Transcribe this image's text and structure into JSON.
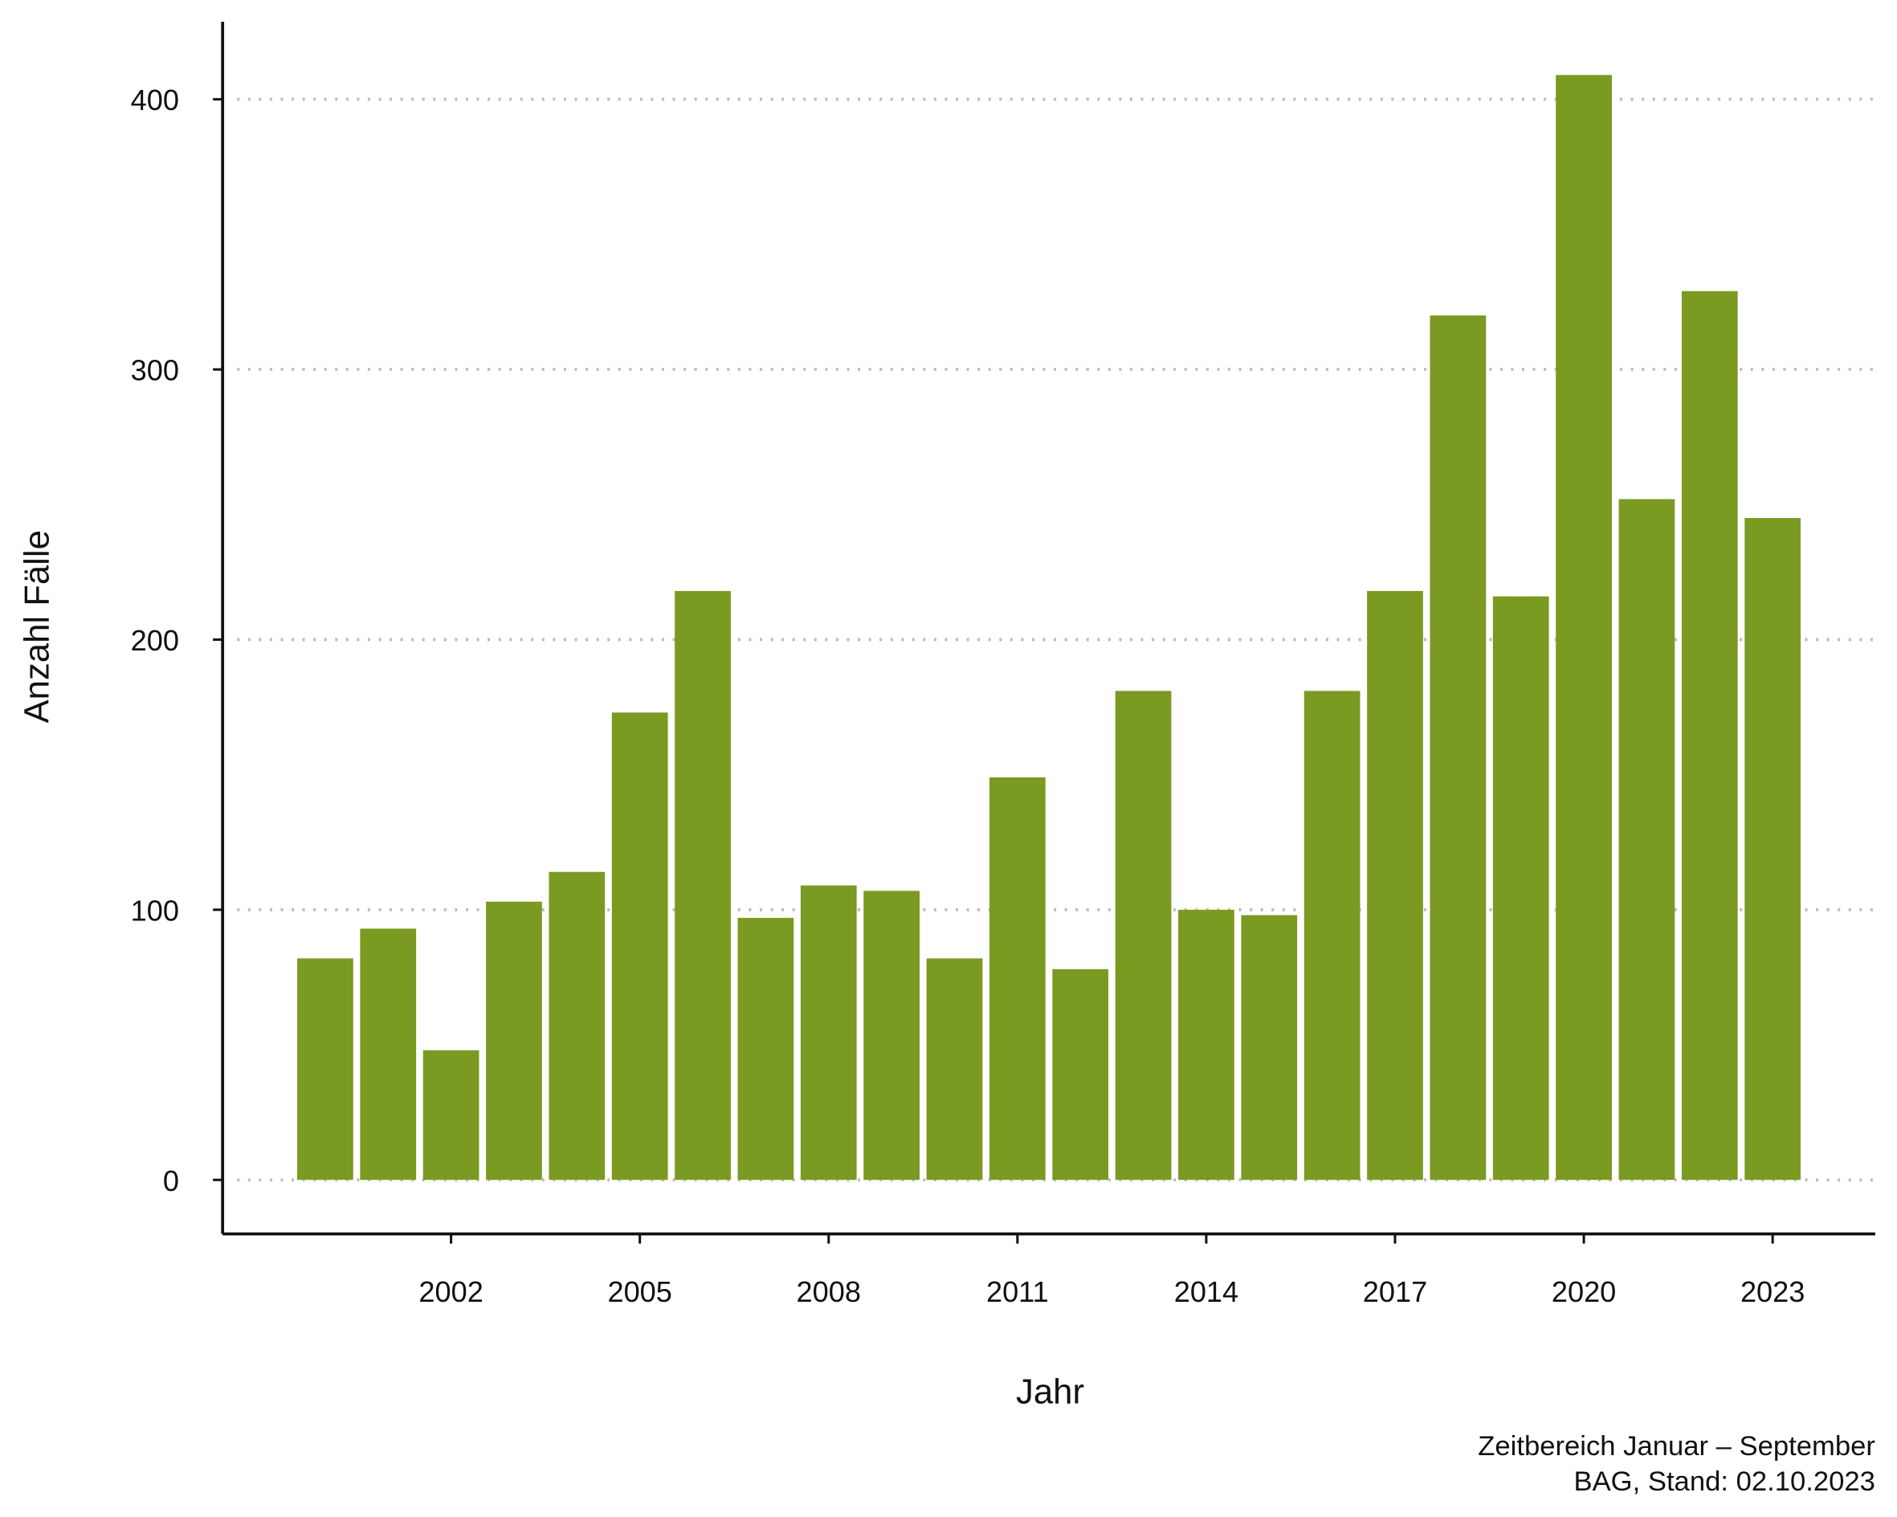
{
  "chart_data": {
    "type": "bar",
    "x": [
      2000,
      2001,
      2002,
      2003,
      2004,
      2005,
      2006,
      2007,
      2008,
      2009,
      2010,
      2011,
      2012,
      2013,
      2014,
      2015,
      2016,
      2017,
      2018,
      2019,
      2020,
      2021,
      2022,
      2023
    ],
    "values": [
      82,
      93,
      48,
      103,
      114,
      173,
      218,
      97,
      109,
      107,
      82,
      149,
      78,
      181,
      100,
      98,
      181,
      218,
      320,
      216,
      409,
      252,
      329,
      245
    ],
    "color": "#7a9a22",
    "xlabel": "Jahr",
    "ylabel": "Anzahl Fälle",
    "xlim": [
      1998.37,
      2024.63
    ],
    "xticks": [
      2002,
      2005,
      2008,
      2011,
      2014,
      2017,
      2020,
      2023
    ],
    "ylim": [
      -20,
      428.7
    ],
    "yticks": [
      0,
      100,
      200,
      300,
      400
    ],
    "grid": true,
    "notes": [
      "Zeitbereich Januar – September",
      "BAG, Stand: 02.10.2023"
    ]
  }
}
